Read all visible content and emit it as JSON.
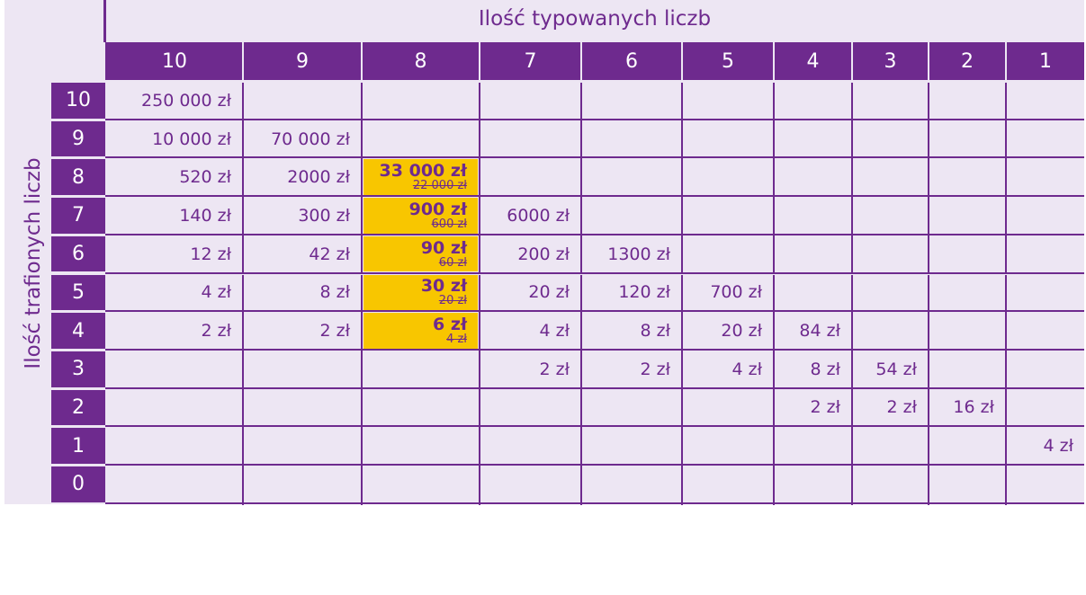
{
  "header": {
    "title": "Ilość typowanych liczb",
    "columns": [
      "10",
      "9",
      "8",
      "7",
      "6",
      "5",
      "4",
      "3",
      "2",
      "1"
    ]
  },
  "row_title": "Ilość trafionych liczb",
  "rows": [
    {
      "label": "10",
      "cells": [
        "250 000 zł",
        null,
        null,
        null,
        null,
        null,
        null,
        null,
        null,
        null
      ]
    },
    {
      "label": "9",
      "cells": [
        "10 000 zł",
        "70 000 zł",
        null,
        null,
        null,
        null,
        null,
        null,
        null,
        null
      ]
    },
    {
      "label": "8",
      "cells": [
        "520 zł",
        "2000 zł",
        {
          "value": "33 000 zł",
          "old": "22 000 zł"
        },
        null,
        null,
        null,
        null,
        null,
        null,
        null
      ]
    },
    {
      "label": "7",
      "cells": [
        "140 zł",
        "300 zł",
        {
          "value": "900 zł",
          "old": "600 zł"
        },
        "6000 zł",
        null,
        null,
        null,
        null,
        null,
        null
      ]
    },
    {
      "label": "6",
      "cells": [
        "12 zł",
        "42 zł",
        {
          "value": "90 zł",
          "old": "60 zł"
        },
        "200 zł",
        "1300 zł",
        null,
        null,
        null,
        null,
        null
      ]
    },
    {
      "label": "5",
      "cells": [
        "4 zł",
        "8 zł",
        {
          "value": "30 zł",
          "old": "20 zł"
        },
        "20 zł",
        "120 zł",
        "700 zł",
        null,
        null,
        null,
        null
      ]
    },
    {
      "label": "4",
      "cells": [
        "2 zł",
        "2 zł",
        {
          "value": "6 zł",
          "old": "4 zł"
        },
        "4 zł",
        "8 zł",
        "20 zł",
        "84 zł",
        null,
        null,
        null
      ]
    },
    {
      "label": "3",
      "cells": [
        null,
        null,
        null,
        "2 zł",
        "2 zł",
        "4 zł",
        "8 zł",
        "54 zł",
        null,
        null
      ]
    },
    {
      "label": "2",
      "cells": [
        null,
        null,
        null,
        null,
        null,
        null,
        "2 zł",
        "2 zł",
        "16 zł",
        null
      ]
    },
    {
      "label": "1",
      "cells": [
        null,
        null,
        null,
        null,
        null,
        null,
        null,
        null,
        null,
        "4 zł"
      ]
    },
    {
      "label": "0",
      "cells": [
        null,
        null,
        null,
        null,
        null,
        null,
        null,
        null,
        null,
        null
      ]
    }
  ]
}
